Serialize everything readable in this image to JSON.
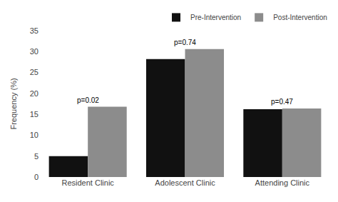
{
  "chart_data": {
    "type": "bar",
    "categories": [
      "Resident Clinic",
      "Adolescent Clinic",
      "Attending Clinic"
    ],
    "series": [
      {
        "name": "Pre-Intervention",
        "color": "#111111",
        "values": [
          5.0,
          28.2,
          16.2
        ]
      },
      {
        "name": "Post-Intervention",
        "color": "#8c8c8c",
        "values": [
          16.8,
          30.6,
          16.4
        ]
      }
    ],
    "annotations": [
      "p=0.02",
      "p=0.74",
      "p=0.47"
    ],
    "ylabel": "Frequency (%)",
    "ylim": [
      0,
      35
    ],
    "yticks": [
      0,
      5,
      10,
      15,
      20,
      25,
      30,
      35
    ],
    "grid": false,
    "legend": "upper right"
  }
}
